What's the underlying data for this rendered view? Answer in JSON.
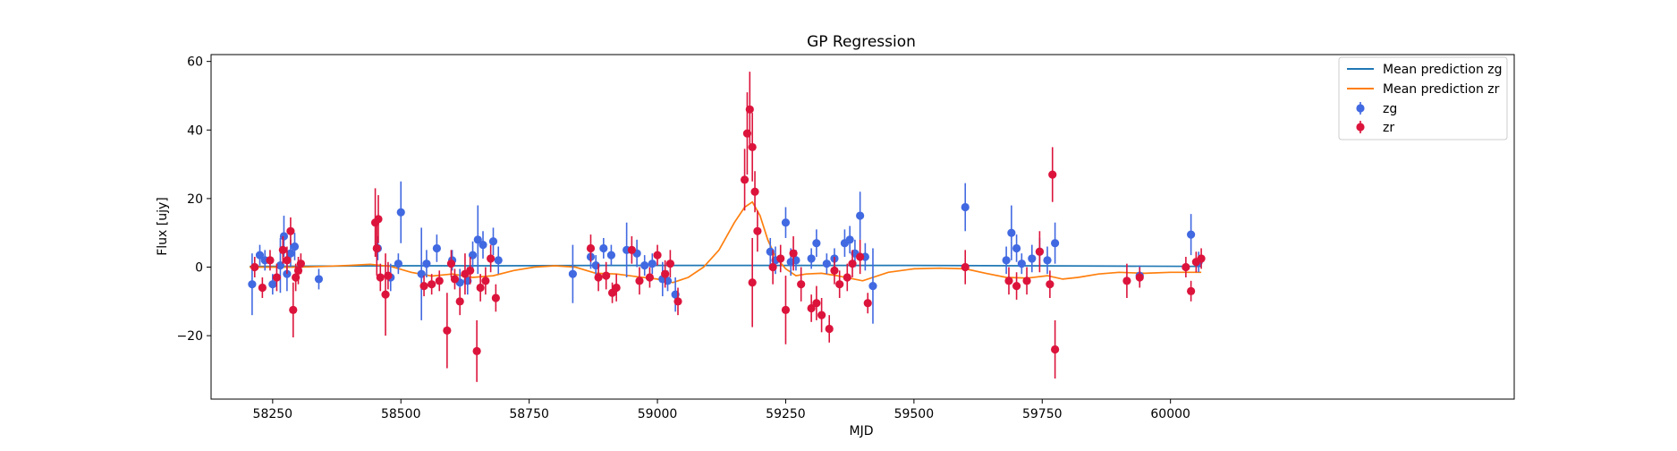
{
  "chart_data": {
    "type": "scatter",
    "title": "GP Regression",
    "xlabel": "MJD",
    "ylabel": "Flux [ujy]",
    "xlim": [
      58130,
      60670
    ],
    "ylim": [
      -38.5,
      62
    ],
    "xticks": [
      58250,
      58500,
      58750,
      59000,
      59250,
      59500,
      59750,
      60000
    ],
    "yticks": [
      -20,
      0,
      20,
      40,
      60
    ],
    "xtick_labels": [
      "58250",
      "58500",
      "58750",
      "59000",
      "59250",
      "59500",
      "59750",
      "60000"
    ],
    "ytick_labels": [
      "−20",
      "0",
      "20",
      "40",
      "60"
    ],
    "grid": false,
    "legend_position": "upper right",
    "legend": [
      {
        "label": "Mean prediction zg",
        "kind": "line",
        "color": "#1f77b4"
      },
      {
        "label": "Mean prediction zr",
        "kind": "line",
        "color": "#ff7f0e"
      },
      {
        "label": "zg",
        "kind": "errorbar",
        "color": "#4169e1"
      },
      {
        "label": "zr",
        "kind": "errorbar",
        "color": "#dc143c"
      }
    ],
    "lines": [
      {
        "name": "Mean prediction zg",
        "color": "#1f77b4",
        "x": [
          58205,
          58350,
          58500,
          58700,
          58900,
          59100,
          59300,
          59500,
          59700,
          59900,
          60060
        ],
        "y": [
          0.2,
          0.3,
          0.4,
          0.4,
          0.5,
          0.5,
          0.5,
          0.5,
          0.4,
          0.3,
          0.2
        ]
      },
      {
        "name": "Mean prediction zr",
        "color": "#ff7f0e",
        "x": [
          58205,
          58250,
          58300,
          58350,
          58400,
          58440,
          58480,
          58520,
          58560,
          58600,
          58640,
          58680,
          58720,
          58760,
          58800,
          58840,
          58880,
          58920,
          58960,
          59000,
          59030,
          59060,
          59090,
          59120,
          59150,
          59170,
          59185,
          59200,
          59215,
          59230,
          59250,
          59270,
          59290,
          59320,
          59350,
          59400,
          59450,
          59500,
          59550,
          59600,
          59640,
          59680,
          59720,
          59760,
          59790,
          59820,
          59860,
          59900,
          59950,
          60000,
          60060
        ],
        "y": [
          0.0,
          0.0,
          0.0,
          0.2,
          0.5,
          0.8,
          0.2,
          -1.5,
          -2.6,
          -2.0,
          -3.0,
          -2.5,
          -1.0,
          0.0,
          0.4,
          0.0,
          -1.8,
          -2.0,
          -2.8,
          -3.5,
          -4.5,
          -3.0,
          0.0,
          5.0,
          13.0,
          17.5,
          19.0,
          15.0,
          8.0,
          3.0,
          -0.5,
          -2.5,
          -2.0,
          -1.8,
          -2.5,
          -4.0,
          -1.5,
          -0.5,
          -0.3,
          -0.5,
          -1.8,
          -3.0,
          -3.2,
          -2.5,
          -3.5,
          -3.0,
          -2.0,
          -1.5,
          -1.8,
          -1.5,
          -1.5
        ]
      }
    ],
    "series": [
      {
        "name": "zg",
        "color": "#4169e1",
        "x": [
          58210,
          58225,
          58235,
          58250,
          58265,
          58272,
          58278,
          58285,
          58293,
          58340,
          58455,
          58480,
          58495,
          58500,
          58540,
          58550,
          58570,
          58600,
          58615,
          58630,
          58640,
          58650,
          58660,
          58680,
          58690,
          58835,
          58870,
          58880,
          58895,
          58910,
          58940,
          58960,
          58975,
          58990,
          59010,
          59020,
          59035,
          59220,
          59230,
          59250,
          59260,
          59270,
          59300,
          59310,
          59330,
          59345,
          59365,
          59375,
          59385,
          59395,
          59405,
          59420,
          59600,
          59680,
          59690,
          59700,
          59710,
          59730,
          59745,
          59760,
          59775,
          59940,
          60040,
          60055
        ],
        "y": [
          -5.0,
          3.5,
          2.0,
          -5.0,
          0.5,
          9.0,
          -2.0,
          4.0,
          6.0,
          -3.5,
          5.5,
          -3.0,
          1.0,
          16.0,
          -2.0,
          1.0,
          5.5,
          2.0,
          -4.5,
          -4.0,
          3.5,
          8.0,
          6.5,
          7.5,
          2.0,
          -2.0,
          3.0,
          0.5,
          5.5,
          3.5,
          5.0,
          4.0,
          0.5,
          1.0,
          -3.5,
          -4.0,
          -8.0,
          4.5,
          2.0,
          13.0,
          1.5,
          2.0,
          2.5,
          7.0,
          1.0,
          2.5,
          7.0,
          8.0,
          4.0,
          15.0,
          3.0,
          -5.5,
          17.5,
          2.0,
          10.0,
          5.5,
          1.0,
          2.5,
          4.5,
          2.0,
          7.0,
          -2.5,
          9.5,
          1.5
        ],
        "err": [
          9.0,
          3.0,
          3.0,
          3.0,
          8.0,
          6.0,
          5.0,
          4.0,
          4.0,
          3.0,
          3.5,
          4.0,
          3.0,
          9.0,
          13.5,
          4.0,
          4.0,
          3.0,
          4.0,
          4.0,
          4.0,
          10.0,
          4.0,
          4.0,
          4.0,
          8.5,
          3.5,
          3.0,
          3.0,
          3.0,
          8.0,
          4.0,
          3.0,
          3.0,
          5.0,
          3.0,
          5.0,
          4.0,
          4.0,
          4.5,
          4.0,
          3.0,
          3.0,
          4.0,
          3.0,
          3.0,
          4.0,
          4.0,
          4.0,
          7.0,
          4.0,
          11.0,
          7.0,
          4.0,
          8.0,
          4.0,
          3.0,
          4.0,
          4.0,
          4.0,
          6.0,
          3.0,
          6.0,
          3.0
        ]
      },
      {
        "name": "zr",
        "color": "#dc143c",
        "x": [
          58215,
          58230,
          58245,
          58258,
          58270,
          58278,
          58285,
          58290,
          58295,
          58300,
          58305,
          58450,
          58453,
          58456,
          58460,
          58470,
          58475,
          58545,
          58560,
          58575,
          58590,
          58598,
          58605,
          58615,
          58625,
          58635,
          58648,
          58655,
          58665,
          58675,
          58685,
          58870,
          58885,
          58900,
          58912,
          58920,
          58950,
          58965,
          58985,
          59000,
          59015,
          59025,
          59040,
          59170,
          59175,
          59180,
          59185,
          59190,
          59195,
          59185,
          59225,
          59240,
          59250,
          59265,
          59280,
          59300,
          59310,
          59320,
          59335,
          59345,
          59355,
          59370,
          59380,
          59395,
          59410,
          59600,
          59685,
          59700,
          59720,
          59745,
          59765,
          59770,
          59775,
          59915,
          59940,
          60030,
          60040,
          60050,
          60060
        ],
        "y": [
          0.0,
          -6.0,
          2.0,
          -3.0,
          5.0,
          2.0,
          10.5,
          -12.5,
          -3.0,
          -1.0,
          1.0,
          13.0,
          5.5,
          14.0,
          -3.0,
          -8.0,
          -2.5,
          -5.5,
          -5.0,
          -4.0,
          -18.5,
          1.0,
          -3.5,
          -10.0,
          -2.0,
          -1.0,
          -24.5,
          -6.0,
          -4.0,
          2.5,
          -9.0,
          5.5,
          -3.0,
          -2.5,
          -7.5,
          -6.0,
          5.0,
          -4.0,
          -3.0,
          3.5,
          -2.0,
          1.0,
          -10.0,
          25.5,
          39.0,
          46.0,
          35.0,
          22.0,
          10.5,
          -4.5,
          0.0,
          2.5,
          -12.5,
          4.0,
          -5.0,
          -12.0,
          -10.5,
          -14.0,
          -18.0,
          -1.0,
          -5.0,
          -3.0,
          1.0,
          3.0,
          -10.5,
          0.0,
          -4.0,
          -5.5,
          -4.0,
          4.5,
          -5.0,
          27.0,
          -24.0,
          -4.0,
          -3.0,
          0.0,
          -7.0,
          1.5,
          2.5
        ],
        "err": [
          3.0,
          3.0,
          3.0,
          4.0,
          4.0,
          4.0,
          4.0,
          8.0,
          4.0,
          4.0,
          3.0,
          10.0,
          8.0,
          7.0,
          4.0,
          12.0,
          4.0,
          3.0,
          3.0,
          3.0,
          11.0,
          4.0,
          3.0,
          4.0,
          6.0,
          4.0,
          9.0,
          4.0,
          4.0,
          4.0,
          4.0,
          4.0,
          4.0,
          4.0,
          3.0,
          4.0,
          4.0,
          4.0,
          3.0,
          3.0,
          4.0,
          4.0,
          4.0,
          9.0,
          12.0,
          11.0,
          10.0,
          6.0,
          6.0,
          13.0,
          5.0,
          4.0,
          10.0,
          5.0,
          5.0,
          4.0,
          5.0,
          5.0,
          4.0,
          4.0,
          4.0,
          4.0,
          4.0,
          5.0,
          3.0,
          5.0,
          4.0,
          4.0,
          4.0,
          6.0,
          4.0,
          8.0,
          8.5,
          5.0,
          3.0,
          3.0,
          3.0,
          3.0,
          3.0
        ]
      }
    ]
  }
}
